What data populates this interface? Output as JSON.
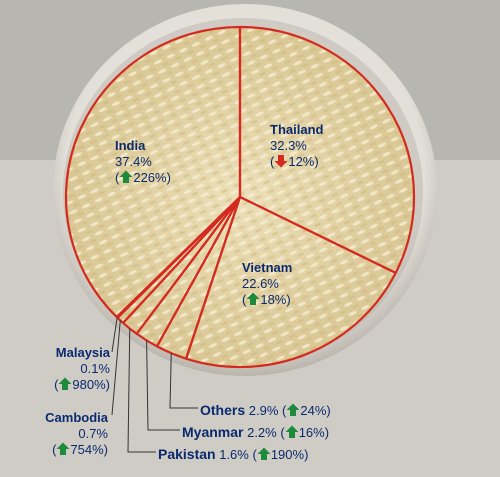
{
  "chart_data": {
    "type": "pie",
    "title": "",
    "slices": [
      {
        "name": "Thailand",
        "share": 32.3,
        "share_label": "32.3%",
        "change_dir": "down",
        "change_label": "12%"
      },
      {
        "name": "Vietnam",
        "share": 22.6,
        "share_label": "22.6%",
        "change_dir": "up",
        "change_label": "18%"
      },
      {
        "name": "Others",
        "share": 2.9,
        "share_label": "2.9%",
        "change_dir": "up",
        "change_label": "24%"
      },
      {
        "name": "Myanmar",
        "share": 2.2,
        "share_label": "2.2%",
        "change_dir": "up",
        "change_label": "16%"
      },
      {
        "name": "Pakistan",
        "share": 1.6,
        "share_label": "1.6%",
        "change_dir": "up",
        "change_label": "190%"
      },
      {
        "name": "Cambodia",
        "share": 0.7,
        "share_label": "0.7%",
        "change_dir": "up",
        "change_label": "754%"
      },
      {
        "name": "Malaysia",
        "share": 0.1,
        "share_label": "0.1%",
        "change_dir": "up",
        "change_label": "980%"
      },
      {
        "name": "India",
        "share": 37.4,
        "share_label": "37.4%",
        "change_dir": "up",
        "change_label": "226%"
      }
    ]
  },
  "colors": {
    "divider": "#d42a1f",
    "label_text": "#0b2a6e",
    "arrow_up": "#1e8a3c",
    "arrow_down": "#d42a1f",
    "rice": "#e6d7ad"
  },
  "icons": {
    "up": "green-up-arrow-icon",
    "down": "red-down-arrow-icon"
  }
}
